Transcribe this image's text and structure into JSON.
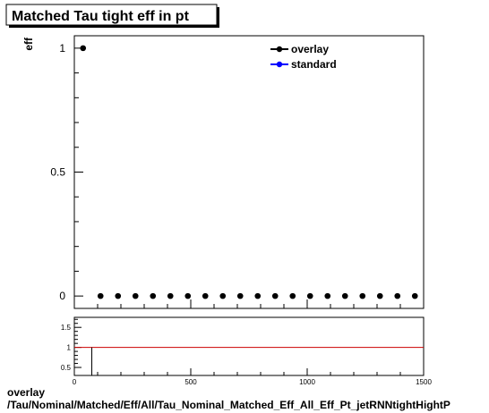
{
  "title": "Matched Tau tight eff in pt",
  "footer": {
    "line1": "overlay",
    "line2": "/Tau/Nominal/Matched/Eff/All/Tau_Nominal_Matched_Eff_All_Eff_Pt_jetRNNtightHightP"
  },
  "chart_data": [
    {
      "type": "scatter",
      "panel": "main",
      "ylabel": "eff",
      "xlabel": "",
      "xlim": [
        0,
        1500
      ],
      "ylim": [
        -0.05,
        1.05
      ],
      "yticks": [
        {
          "value": 0,
          "label": "0"
        },
        {
          "value": 0.5,
          "label": "0.5"
        },
        {
          "value": 1,
          "label": "1"
        }
      ],
      "legend": {
        "position": "top-right",
        "entries": [
          {
            "name": "overlay",
            "color": "#000000"
          },
          {
            "name": "standard",
            "color": "#0000ff"
          }
        ]
      },
      "series": [
        {
          "name": "overlay",
          "color": "#000000",
          "x": [
            37.5,
            112.5,
            187.5,
            262.5,
            337.5,
            412.5,
            487.5,
            562.5,
            637.5,
            712.5,
            787.5,
            862.5,
            937.5,
            1012.5,
            1087.5,
            1162.5,
            1237.5,
            1312.5,
            1387.5,
            1462.5
          ],
          "y": [
            1,
            0,
            0,
            0,
            0,
            0,
            0,
            0,
            0,
            0,
            0,
            0,
            0,
            0,
            0,
            0,
            0,
            0,
            0,
            0
          ]
        }
      ]
    },
    {
      "type": "line",
      "panel": "ratio",
      "xlim": [
        0,
        1500
      ],
      "ylim": [
        0.3,
        1.75
      ],
      "xticks": [
        {
          "value": 0,
          "label": "0"
        },
        {
          "value": 500,
          "label": "500"
        },
        {
          "value": 1000,
          "label": "1000"
        },
        {
          "value": 1500,
          "label": "1500"
        }
      ],
      "yticks": [
        {
          "value": 0.5,
          "label": "0.5"
        },
        {
          "value": 1,
          "label": "1"
        },
        {
          "value": 1.5,
          "label": "1.5"
        }
      ],
      "reference_line": {
        "y": 1,
        "color": "#cc0000"
      },
      "series": [
        {
          "color": "#000000",
          "x": [
            75,
            75
          ],
          "y": [
            1,
            0.3
          ]
        }
      ]
    }
  ]
}
